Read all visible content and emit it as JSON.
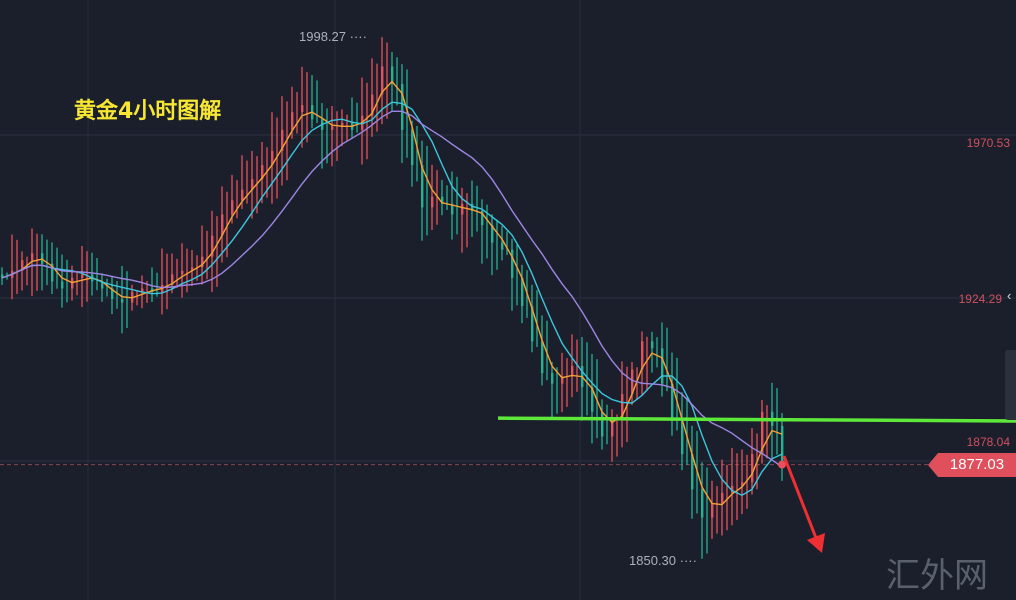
{
  "title": "黄金4小时图解",
  "watermark": "汇外网",
  "chart_data": {
    "type": "candlestick",
    "title": "黄金4小时图解",
    "y_ticks": [
      "1970.53",
      "1924.29",
      "1878.04"
    ],
    "y_tick_values": [
      1970.53,
      1924.29,
      1878.04
    ],
    "last_price": "1877.03",
    "last_price_value": 1877.03,
    "high_label": "1998.27",
    "high_value": 1998.27,
    "low_label": "1850.30",
    "low_value": 1850.3,
    "closes": [
      1930,
      1932,
      1935,
      1937,
      1934,
      1929,
      1927,
      1930,
      1931,
      1929,
      1927,
      1924,
      1923,
      1926,
      1927,
      1926,
      1928,
      1931,
      1932,
      1933,
      1936,
      1942,
      1948,
      1952,
      1955,
      1958,
      1962,
      1966,
      1972,
      1977,
      1979,
      1975,
      1972,
      1973,
      1974,
      1972,
      1976,
      1982,
      1990,
      1985,
      1972,
      1962,
      1950,
      1953,
      1951,
      1948,
      1951,
      1949,
      1945,
      1940,
      1938,
      1930,
      1922,
      1912,
      1903,
      1900,
      1902,
      1905,
      1899,
      1892,
      1885,
      1890,
      1897,
      1904,
      1912,
      1910,
      1900,
      1890,
      1880,
      1870,
      1862,
      1866,
      1869,
      1871,
      1872,
      1880,
      1892,
      1888,
      1877.03
    ],
    "moving_averages": [
      {
        "period": 3,
        "color": "#f5a034"
      },
      {
        "period": 6,
        "color": "#3cc6dc"
      },
      {
        "period": 12,
        "color": "#9d86e3"
      }
    ],
    "up_color": "#e8505b",
    "down_color": "#22b391",
    "support_line": {
      "color": "#5ee83a",
      "price_start": 1890.2,
      "price_end": 1889.4
    },
    "arrow_color": "#ee2f33",
    "grid": true
  }
}
